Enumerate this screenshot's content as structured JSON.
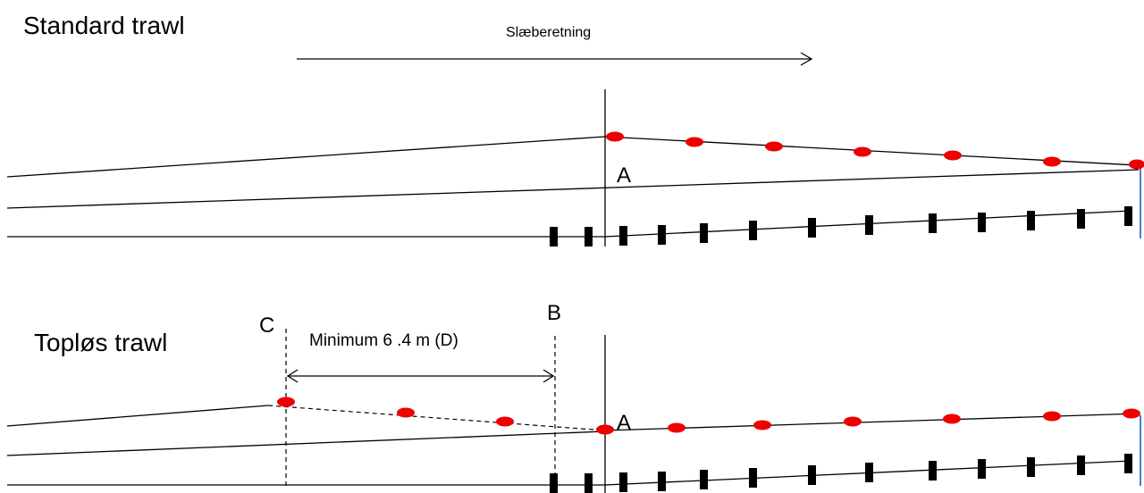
{
  "standard": {
    "title": "Standard trawl",
    "direction_label": "Slæberetning",
    "point_a": "A"
  },
  "toploes": {
    "title": "Topløs trawl",
    "point_c": "C",
    "point_b": "B",
    "point_a": "A",
    "distance_label": "Minimum 6 .4 m (D)"
  },
  "colors": {
    "line": "#000000",
    "float": "#ee0000",
    "end_marker": "#4a7ec4"
  },
  "icons": {
    "float": "red-ellipse-float",
    "weight": "black-rectangle-weight",
    "arrow": "right-arrow"
  }
}
